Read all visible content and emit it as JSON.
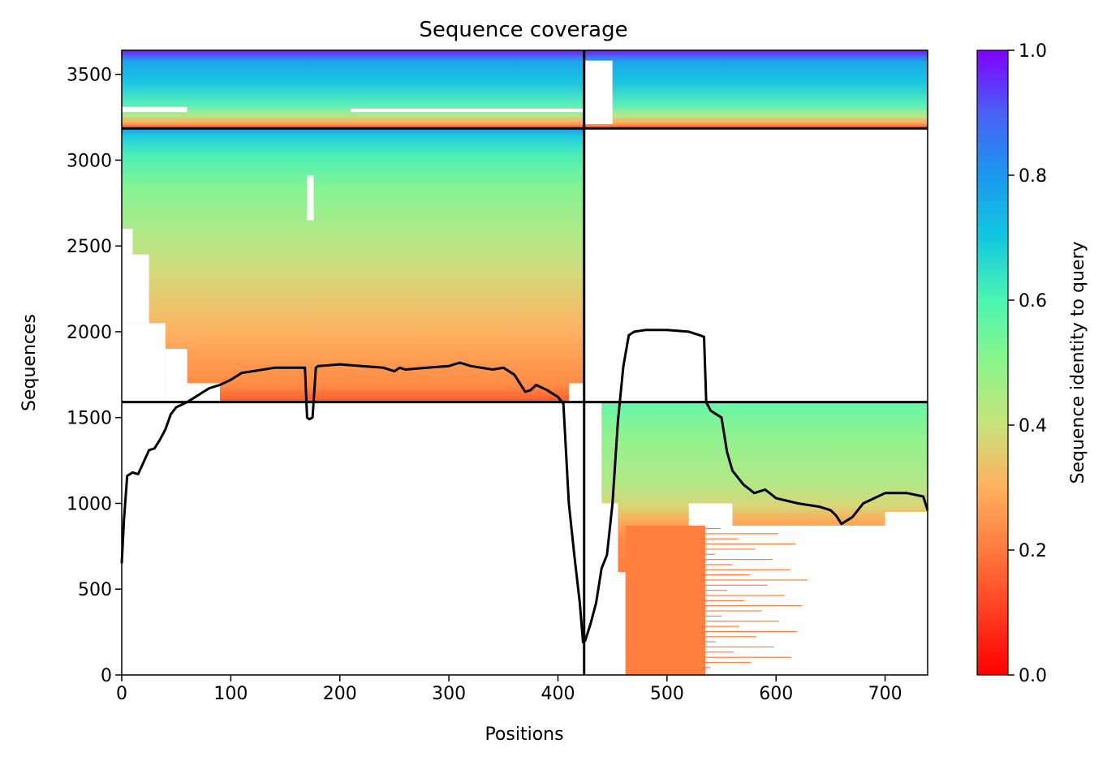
{
  "chart_data": {
    "type": "heatmap",
    "title": "Sequence coverage",
    "xlabel": "Positions",
    "ylabel": "Sequences",
    "xlim": [
      0,
      739
    ],
    "ylim": [
      0,
      3640
    ],
    "x_ticks": [
      0,
      100,
      200,
      300,
      400,
      500,
      600,
      700
    ],
    "y_ticks": [
      0,
      500,
      1000,
      1500,
      2000,
      2500,
      3000,
      3500
    ],
    "colorbar": {
      "label": "Sequence identity to query",
      "range": [
        0,
        1
      ],
      "ticks": [
        "0.0",
        "0.2",
        "0.4",
        "0.6",
        "0.8",
        "1.0"
      ],
      "colormap": "rainbow_r"
    },
    "block_boundaries": {
      "x": [
        424
      ],
      "y": [
        1590,
        3185
      ]
    },
    "blocks": [
      {
        "name": "top-left",
        "x_range": [
          0,
          424
        ],
        "y_range": [
          3185,
          3640
        ],
        "identity_range": [
          0.1,
          1.0
        ]
      },
      {
        "name": "top-right",
        "x_range": [
          424,
          739
        ],
        "y_range": [
          3185,
          3640
        ],
        "identity_range": [
          0.1,
          1.0
        ]
      },
      {
        "name": "middle-left",
        "x_range": [
          0,
          424
        ],
        "y_range": [
          1590,
          3185
        ],
        "identity_range": [
          0.1,
          0.75
        ]
      },
      {
        "name": "middle-right",
        "x_range": [
          424,
          739
        ],
        "y_range": [
          1590,
          3185
        ],
        "identity_range": null
      },
      {
        "name": "bottom-left",
        "x_range": [
          0,
          424
        ],
        "y_range": [
          0,
          1590
        ],
        "identity_range": null
      },
      {
        "name": "bottom-right",
        "x_range": [
          424,
          739
        ],
        "y_range": [
          0,
          1590
        ],
        "identity_range": [
          0.1,
          0.5
        ]
      }
    ],
    "coverage_line": {
      "x": [
        0,
        2,
        5,
        10,
        15,
        20,
        25,
        30,
        35,
        40,
        45,
        50,
        60,
        70,
        80,
        90,
        100,
        110,
        120,
        130,
        140,
        150,
        160,
        168,
        170,
        172,
        175,
        178,
        180,
        190,
        200,
        220,
        240,
        250,
        255,
        260,
        280,
        300,
        310,
        320,
        340,
        350,
        360,
        365,
        370,
        375,
        380,
        390,
        395,
        400,
        405,
        410,
        415,
        420,
        423,
        425,
        430,
        435,
        440,
        445,
        450,
        455,
        460,
        465,
        470,
        480,
        500,
        520,
        530,
        534,
        536,
        540,
        550,
        555,
        560,
        565,
        570,
        580,
        590,
        600,
        620,
        640,
        650,
        655,
        660,
        670,
        680,
        700,
        720,
        735,
        739
      ],
      "y": [
        650,
        900,
        1160,
        1180,
        1170,
        1240,
        1310,
        1320,
        1370,
        1430,
        1520,
        1560,
        1590,
        1630,
        1670,
        1690,
        1720,
        1760,
        1770,
        1780,
        1790,
        1790,
        1790,
        1790,
        1500,
        1490,
        1500,
        1790,
        1800,
        1805,
        1810,
        1800,
        1790,
        1770,
        1790,
        1780,
        1790,
        1800,
        1820,
        1800,
        1780,
        1790,
        1750,
        1700,
        1650,
        1660,
        1690,
        1660,
        1640,
        1620,
        1580,
        1000,
        700,
        420,
        190,
        200,
        300,
        420,
        620,
        700,
        1000,
        1480,
        1800,
        1980,
        2000,
        2010,
        2010,
        2000,
        1980,
        1970,
        1590,
        1540,
        1500,
        1300,
        1190,
        1150,
        1110,
        1060,
        1080,
        1030,
        1000,
        980,
        960,
        930,
        880,
        920,
        1000,
        1060,
        1060,
        1040,
        960
      ]
    }
  }
}
